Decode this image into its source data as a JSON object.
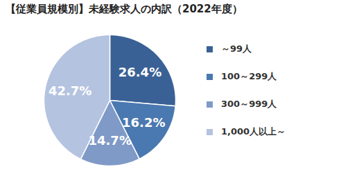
{
  "chart_data": {
    "type": "pie",
    "title": "【従業員規模別】未経験求人の内訳（2022年度）",
    "categories": [
      "～99人",
      "100～299人",
      "300～999人",
      "1,000人以上～"
    ],
    "values": [
      26.4,
      16.2,
      14.7,
      42.7
    ],
    "value_labels": [
      "26.4%",
      "16.2%",
      "14.7%",
      "42.7%"
    ],
    "colors": [
      "#3a6196",
      "#4a78b0",
      "#7f9ac7",
      "#b4c3df"
    ],
    "data_labels": true,
    "legend": "right"
  }
}
